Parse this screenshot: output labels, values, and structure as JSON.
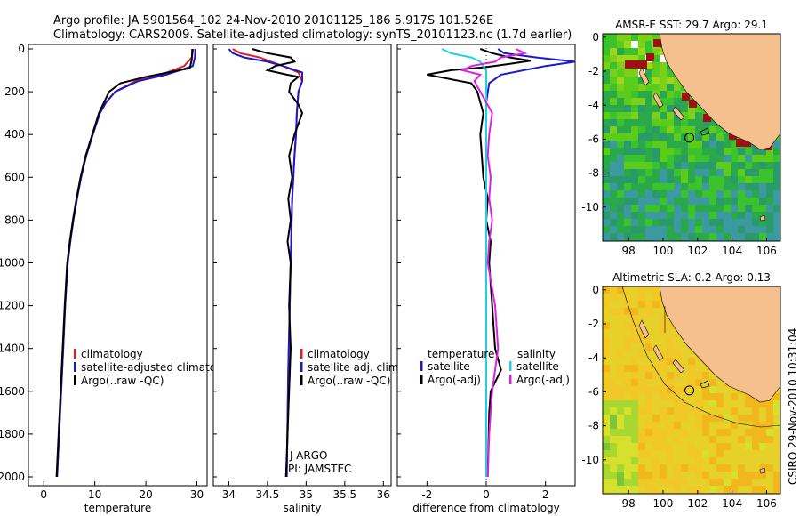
{
  "header": {
    "line1": "Argo profile: JA 5901564_102 24-Nov-2010 20101125_186 5.917S 101.526E",
    "line2": "Climatology: CARS2009. Satellite-adjusted climatology: synTS_20101123.nc (1.7d earlier)"
  },
  "side_credit": "CSIRO 29-Nov-2010 10:31:04",
  "colors": {
    "clim": "#e02020",
    "sat": "#1a1acc",
    "argo": "#000000",
    "sal_sat": "#20d0e0",
    "sal_argo": "#e020e0",
    "land": "#f5c08e"
  },
  "chart_data": [
    {
      "id": "temperature",
      "type": "line",
      "xlabel": "temperature",
      "ylabel": "",
      "xlim": [
        -3,
        32
      ],
      "ylim": [
        2050,
        0
      ],
      "xticks": [
        0,
        10,
        20,
        30
      ],
      "yticks": [
        0,
        200,
        400,
        600,
        800,
        1000,
        1200,
        1400,
        1600,
        1800,
        2000
      ],
      "legend": [
        "climatology",
        "satellite-adjusted climatology",
        "Argo(..raw -QC)"
      ],
      "series": [
        {
          "name": "climatology",
          "color": "clim",
          "points": [
            [
              29.3,
              0
            ],
            [
              29.0,
              40
            ],
            [
              27.5,
              80
            ],
            [
              23,
              120
            ],
            [
              18,
              150
            ],
            [
              14,
              200
            ],
            [
              12.2,
              250
            ],
            [
              11,
              300
            ],
            [
              9.6,
              400
            ],
            [
              8.3,
              500
            ],
            [
              7.3,
              600
            ],
            [
              6.5,
              700
            ],
            [
              5.8,
              800
            ],
            [
              5.2,
              900
            ],
            [
              4.7,
              1000
            ],
            [
              4.2,
              1200
            ],
            [
              3.8,
              1400
            ],
            [
              3.4,
              1600
            ],
            [
              3.0,
              1800
            ],
            [
              2.6,
              2000
            ]
          ]
        },
        {
          "name": "satellite-adjusted climatology",
          "color": "sat",
          "points": [
            [
              29.7,
              0
            ],
            [
              29.6,
              40
            ],
            [
              29.2,
              80
            ],
            [
              24,
              120
            ],
            [
              18.5,
              150
            ],
            [
              14,
              200
            ],
            [
              12.2,
              250
            ],
            [
              11,
              300
            ],
            [
              9.6,
              400
            ],
            [
              8.3,
              500
            ],
            [
              7.3,
              600
            ],
            [
              6.5,
              700
            ],
            [
              5.8,
              800
            ],
            [
              5.2,
              900
            ],
            [
              4.7,
              1000
            ],
            [
              4.2,
              1200
            ],
            [
              3.8,
              1400
            ],
            [
              3.4,
              1600
            ],
            [
              3.0,
              1800
            ],
            [
              2.6,
              2000
            ]
          ]
        },
        {
          "name": "Argo(..raw -QC)",
          "color": "argo",
          "points": [
            [
              29.1,
              0
            ],
            [
              29.0,
              50
            ],
            [
              28.6,
              90
            ],
            [
              20,
              130
            ],
            [
              15,
              160
            ],
            [
              12.8,
              200
            ],
            [
              11.8,
              250
            ],
            [
              10.8,
              300
            ],
            [
              9.5,
              400
            ],
            [
              8.2,
              500
            ],
            [
              7.2,
              600
            ],
            [
              6.4,
              700
            ],
            [
              5.7,
              800
            ],
            [
              5.1,
              900
            ],
            [
              4.6,
              1000
            ],
            [
              4.1,
              1200
            ],
            [
              3.7,
              1400
            ],
            [
              3.3,
              1600
            ],
            [
              2.9,
              1800
            ],
            [
              2.5,
              2000
            ]
          ]
        }
      ]
    },
    {
      "id": "salinity",
      "type": "line",
      "xlabel": "salinity",
      "xlim": [
        33.8,
        36.1
      ],
      "ylim": [
        2050,
        0
      ],
      "xticks": [
        34,
        34.5,
        35,
        35.5,
        36
      ],
      "legend": [
        "climatology",
        "satellite adj. clim.",
        "Argo(..raw -QC)"
      ],
      "annotations": [
        "J-ARGO",
        "PI: JAMSTEC"
      ],
      "series": [
        {
          "name": "climatology",
          "color": "clim",
          "points": [
            [
              34.05,
              0
            ],
            [
              34.15,
              20
            ],
            [
              34.4,
              40
            ],
            [
              34.55,
              60
            ],
            [
              34.7,
              80
            ],
            [
              34.9,
              110
            ],
            [
              34.95,
              150
            ],
            [
              34.9,
              200
            ],
            [
              34.88,
              300
            ],
            [
              34.87,
              400
            ],
            [
              34.85,
              500
            ],
            [
              34.82,
              700
            ],
            [
              34.8,
              1000
            ],
            [
              34.77,
              1500
            ],
            [
              34.75,
              2000
            ]
          ]
        },
        {
          "name": "satellite adj. clim.",
          "color": "sat",
          "points": [
            [
              34.0,
              0
            ],
            [
              34.05,
              20
            ],
            [
              34.2,
              40
            ],
            [
              34.5,
              60
            ],
            [
              34.7,
              80
            ],
            [
              34.95,
              110
            ],
            [
              34.95,
              150
            ],
            [
              34.9,
              200
            ],
            [
              34.88,
              300
            ],
            [
              34.87,
              400
            ],
            [
              34.85,
              500
            ],
            [
              34.82,
              700
            ],
            [
              34.8,
              1000
            ],
            [
              34.77,
              1500
            ],
            [
              34.75,
              2000
            ]
          ]
        },
        {
          "name": "Argo(..raw -QC)",
          "color": "argo",
          "points": [
            [
              34.3,
              0
            ],
            [
              34.5,
              20
            ],
            [
              34.8,
              40
            ],
            [
              34.85,
              60
            ],
            [
              34.6,
              80
            ],
            [
              34.5,
              100
            ],
            [
              34.75,
              120
            ],
            [
              34.9,
              130
            ],
            [
              34.8,
              160
            ],
            [
              34.78,
              200
            ],
            [
              34.9,
              260
            ],
            [
              34.95,
              300
            ],
            [
              34.85,
              400
            ],
            [
              34.78,
              500
            ],
            [
              34.82,
              600
            ],
            [
              34.77,
              700
            ],
            [
              34.8,
              800
            ],
            [
              34.76,
              900
            ],
            [
              34.8,
              1000
            ],
            [
              34.78,
              1200
            ],
            [
              34.8,
              1400
            ],
            [
              34.78,
              1600
            ],
            [
              34.76,
              1800
            ],
            [
              34.74,
              2000
            ]
          ]
        }
      ]
    },
    {
      "id": "difference",
      "type": "line",
      "xlabel": "difference from climatology",
      "xlim": [
        -3,
        3
      ],
      "ylim": [
        2050,
        0
      ],
      "xticks": [
        -2,
        0,
        2
      ],
      "legend_groups": [
        {
          "heading": "temperature",
          "items": [
            "satellite",
            "Argo(-adj)"
          ]
        },
        {
          "heading": "salinity",
          "items": [
            "satellite",
            "Argo(-adj)"
          ]
        }
      ],
      "series": [
        {
          "name": "temperature satellite",
          "color": "sat",
          "points": [
            [
              0.4,
              0
            ],
            [
              0.6,
              20
            ],
            [
              1.7,
              40
            ],
            [
              3.0,
              60
            ],
            [
              2.0,
              80
            ],
            [
              0.5,
              120
            ],
            [
              0.1,
              160
            ],
            [
              0,
              250
            ],
            [
              0,
              500
            ],
            [
              0,
              1000
            ],
            [
              0,
              1500
            ],
            [
              0,
              2000
            ]
          ]
        },
        {
          "name": "temperature Argo(-adj)",
          "color": "argo",
          "points": [
            [
              -0.2,
              0
            ],
            [
              0.2,
              20
            ],
            [
              0.8,
              40
            ],
            [
              1.5,
              55
            ],
            [
              0.8,
              70
            ],
            [
              0.0,
              85
            ],
            [
              -1.2,
              100
            ],
            [
              -2.0,
              120
            ],
            [
              -0.5,
              160
            ],
            [
              -0.3,
              200
            ],
            [
              -0.1,
              300
            ],
            [
              -0.2,
              400
            ],
            [
              -0.15,
              500
            ],
            [
              -0.1,
              600
            ],
            [
              0.05,
              700
            ],
            [
              0.0,
              800
            ],
            [
              0.15,
              900
            ],
            [
              0.1,
              1000
            ],
            [
              0.2,
              1200
            ],
            [
              0.3,
              1400
            ],
            [
              0.5,
              1500
            ],
            [
              0.15,
              1600
            ],
            [
              0.1,
              1700
            ],
            [
              0.05,
              2000
            ]
          ]
        },
        {
          "name": "salinity satellite",
          "color": "sal_sat",
          "points": [
            [
              -1.5,
              0
            ],
            [
              -1.2,
              20
            ],
            [
              -0.5,
              40
            ],
            [
              -0.2,
              60
            ],
            [
              0,
              100
            ],
            [
              0,
              200
            ],
            [
              0,
              500
            ],
            [
              0,
              1000
            ],
            [
              0,
              1500
            ],
            [
              0,
              2000
            ]
          ]
        },
        {
          "name": "salinity Argo(-adj)",
          "color": "sal_argo",
          "points": [
            [
              1.0,
              0
            ],
            [
              1.3,
              20
            ],
            [
              0.5,
              40
            ],
            [
              0.3,
              60
            ],
            [
              -0.5,
              80
            ],
            [
              -0.8,
              100
            ],
            [
              -0.2,
              120
            ],
            [
              -0.4,
              150
            ],
            [
              -0.2,
              200
            ],
            [
              0.0,
              250
            ],
            [
              0.2,
              300
            ],
            [
              0.1,
              400
            ],
            [
              0.05,
              500
            ],
            [
              0.15,
              600
            ],
            [
              0.1,
              700
            ],
            [
              0.2,
              800
            ],
            [
              0.1,
              900
            ],
            [
              0.05,
              1000
            ],
            [
              0.3,
              1200
            ],
            [
              0.4,
              1400
            ],
            [
              0.2,
              1600
            ],
            [
              0.1,
              1800
            ],
            [
              0.05,
              2000
            ]
          ]
        }
      ]
    },
    {
      "id": "sst-map",
      "type": "heatmap",
      "title": "AMSR-E SST: 29.7 Argo: 29.1",
      "xlim": [
        96.5,
        106.8
      ],
      "ylim": [
        -12,
        0.2
      ],
      "xticks": [
        98,
        100,
        102,
        104,
        106
      ],
      "yticks": [
        0,
        -2,
        -4,
        -6,
        -8,
        -10
      ],
      "float_position": [
        101.526,
        -5.917
      ]
    },
    {
      "id": "sla-map",
      "type": "heatmap",
      "title": "Altimetric SLA: 0.2 Argo: 0.13",
      "xlim": [
        96.5,
        106.8
      ],
      "ylim": [
        -12,
        0.2
      ],
      "xticks": [
        98,
        100,
        102,
        104,
        106
      ],
      "yticks": [
        0,
        -2,
        -4,
        -6,
        -8,
        -10
      ],
      "float_position": [
        101.526,
        -5.917
      ]
    }
  ]
}
